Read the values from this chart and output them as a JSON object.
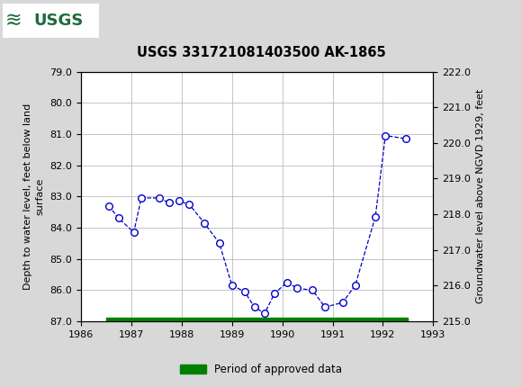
{
  "title": "USGS 331721081403500 AK-1865",
  "ylabel_left": "Depth to water level, feet below land\nsurface",
  "ylabel_right": "Groundwater level above NGVD 1929, feet",
  "ylim_left": [
    87.0,
    79.0
  ],
  "ylim_right": [
    215.0,
    222.0
  ],
  "xlim": [
    1986,
    1993
  ],
  "xticks": [
    1986,
    1987,
    1988,
    1989,
    1990,
    1991,
    1992,
    1993
  ],
  "yticks_left": [
    79.0,
    80.0,
    81.0,
    82.0,
    83.0,
    84.0,
    85.0,
    86.0,
    87.0
  ],
  "yticks_right": [
    215.0,
    216.0,
    217.0,
    218.0,
    219.0,
    220.0,
    221.0,
    222.0
  ],
  "data_x": [
    1986.55,
    1986.75,
    1987.05,
    1987.2,
    1987.55,
    1987.75,
    1987.95,
    1988.15,
    1988.45,
    1988.75,
    1989.0,
    1989.25,
    1989.45,
    1989.65,
    1989.85,
    1990.1,
    1990.3,
    1990.6,
    1990.85,
    1991.2,
    1991.45,
    1991.85,
    1992.05,
    1992.45
  ],
  "data_y": [
    83.3,
    83.7,
    84.15,
    83.05,
    83.05,
    83.2,
    83.15,
    83.25,
    83.85,
    84.5,
    85.85,
    86.05,
    86.55,
    86.75,
    86.1,
    85.75,
    85.95,
    86.0,
    86.55,
    86.4,
    85.85,
    83.65,
    81.05,
    81.15
  ],
  "line_color": "#0000cc",
  "marker_color": "#0000cc",
  "marker_face": "#ffffff",
  "bar_color": "#008000",
  "bar_x_start": 1986.5,
  "bar_x_end": 1992.5,
  "header_bg": "#1e6b3c",
  "background_color": "#d8d8d8",
  "plot_bg": "#ffffff",
  "legend_label": "Period of approved data",
  "grid_color": "#bbbbbb"
}
